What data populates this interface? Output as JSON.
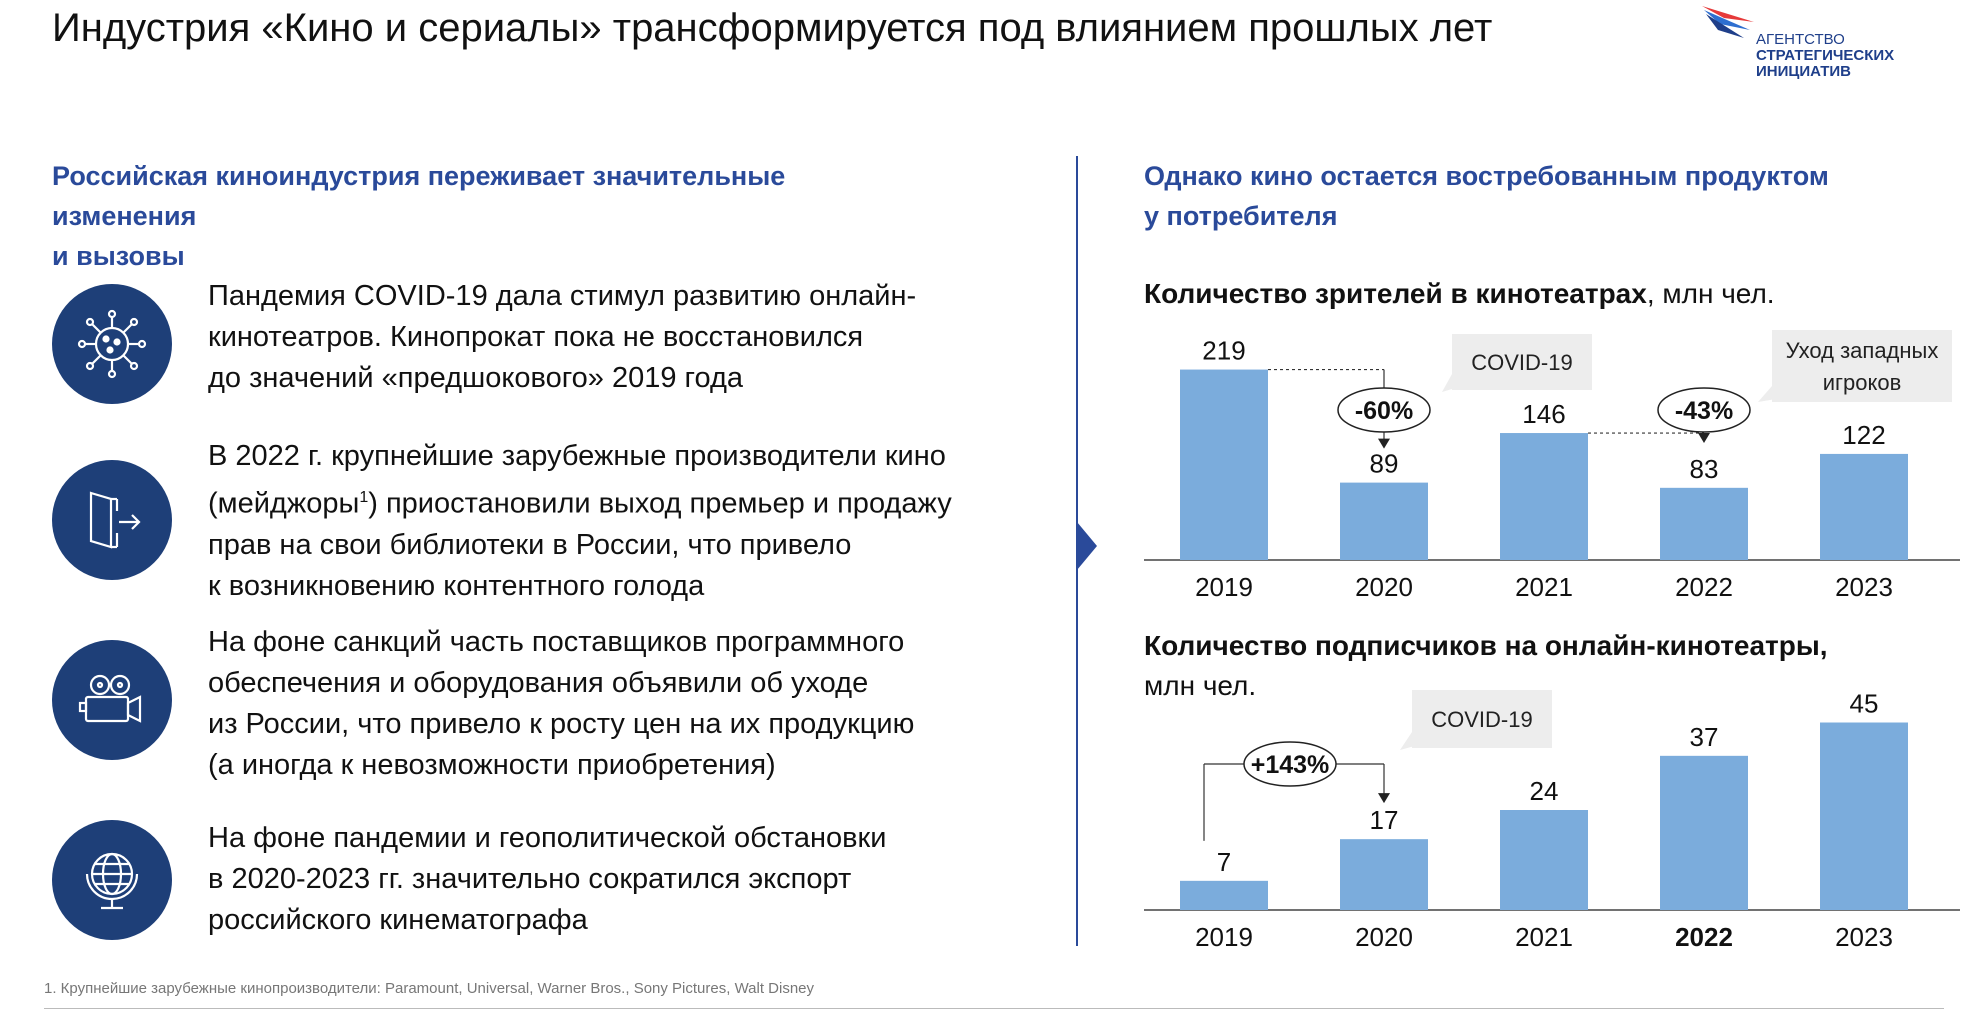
{
  "header": {
    "title": "Индустрия «Кино и сериалы» трансформируется под влиянием прошлых лет",
    "logo": {
      "lines": [
        "АГЕНТСТВО",
        "СТРАТЕГИЧЕСКИХ",
        "ИНИЦИАТИВ"
      ],
      "colors": [
        "#1f3f8a",
        "#e63a3a",
        "#2e6fd0"
      ]
    }
  },
  "left": {
    "heading": [
      "Российская киноиндустрия переживает значительные",
      "изменения",
      "и вызовы"
    ],
    "items": [
      {
        "icon": "virus-icon",
        "lines": [
          "Пандемия COVID-19 дала стимул развитию онлайн-",
          "кинотеатров. Кинопрокат пока не восстановился",
          "до значений «предшокового» 2019 года"
        ]
      },
      {
        "icon": "exit-door-icon",
        "lines": [
          "В 2022 г. крупнейшие зарубежные производители кино",
          "(мейджоры",
          "1",
          ") приостановили выход премьер и продажу",
          "прав на свои библиотеки в России, что привело",
          "к возникновению контентного голода"
        ]
      },
      {
        "icon": "film-camera-icon",
        "lines": [
          "На фоне санкций часть поставщиков программного",
          "обеспечения и оборудования объявили об уходе",
          "из России, что привело к росту цен на их продукцию",
          "(а иногда к невозможности приобретения)"
        ]
      },
      {
        "icon": "globe-icon",
        "lines": [
          "На фоне пандемии и геополитической обстановки",
          "в 2020-2023 гг. значительно сократился экспорт",
          "российского кинематографа"
        ]
      }
    ]
  },
  "right": {
    "heading": [
      "Однако кино остается востребованным продуктом",
      "у потребителя"
    ]
  },
  "colors": {
    "bar": "#7bacdc",
    "accent": "#2a4a9a",
    "icon_bg": "#1e3f78",
    "callout": "#ededed"
  },
  "chart_data": [
    {
      "type": "bar",
      "title_bold": "Количество зрителей в кинотеатрах",
      "title_unit": ", млн чел.",
      "categories": [
        "2019",
        "2020",
        "2021",
        "2022",
        "2023"
      ],
      "values": [
        219,
        89,
        146,
        83,
        122
      ],
      "ylim": [
        0,
        230
      ],
      "annotations": [
        {
          "label": "-60%",
          "from": 0,
          "to": 1,
          "callout": "COVID-19"
        },
        {
          "label": "-43%",
          "from": 2,
          "to": 3,
          "callout": [
            "Уход западных",
            "игроков"
          ]
        }
      ]
    },
    {
      "type": "bar",
      "title_bold": "Количество подписчиков на онлайн-кинотеатры",
      "title_unit": ",",
      "title_line2": "млн чел.",
      "categories": [
        "2019",
        "2020",
        "2021",
        "2022",
        "2023"
      ],
      "values": [
        7,
        17,
        24,
        37,
        45
      ],
      "ylim": [
        0,
        48
      ],
      "annotations": [
        {
          "label": "+143%",
          "from": 0,
          "to": 1,
          "callout": "COVID-19"
        }
      ]
    }
  ],
  "footnote": "1. Крупнейшие зарубежные кинопроизводители: Paramount, Universal, Warner Bros., Sony Pictures, Walt Disney"
}
